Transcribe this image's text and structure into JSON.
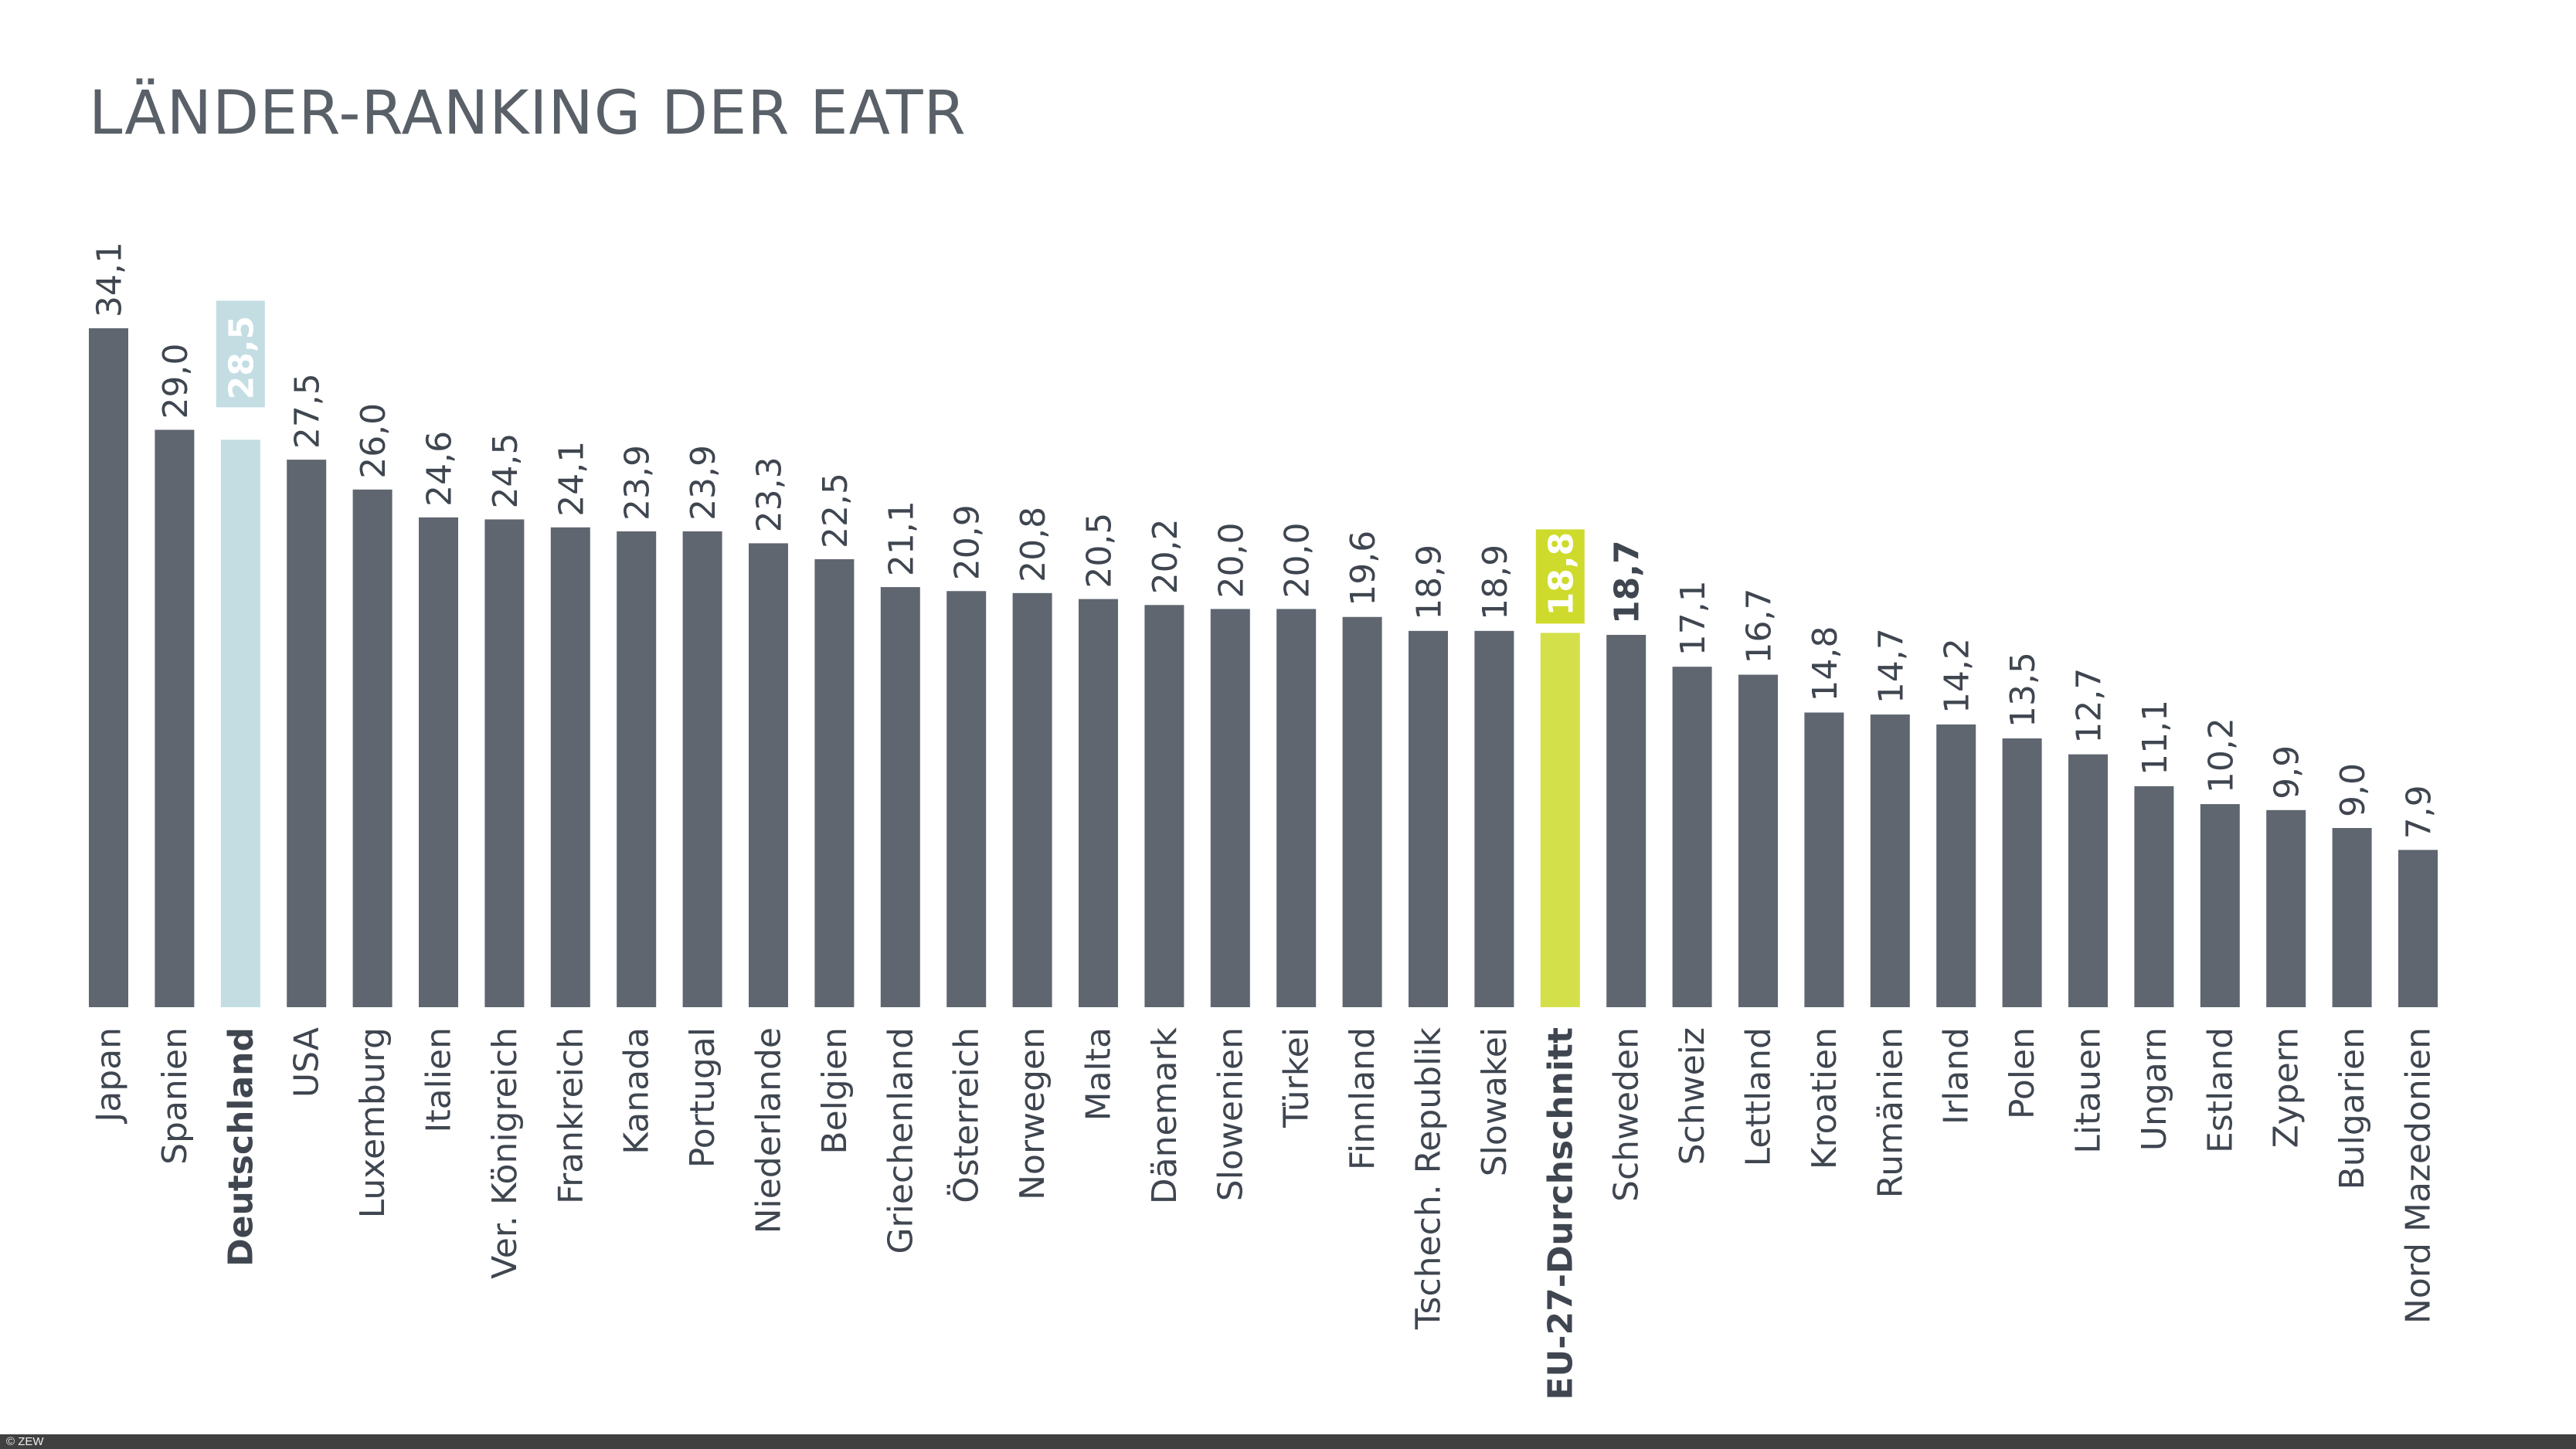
{
  "chart_data": {
    "type": "bar",
    "title": "LÄNDER-RANKING DER EATR",
    "categories": [
      "Japan",
      "Spanien",
      "Deutschland",
      "USA",
      "Luxemburg",
      "Italien",
      "Ver. Königreich",
      "Frankreich",
      "Kanada",
      "Portugal",
      "Niederlande",
      "Belgien",
      "Griechenland",
      "Österreich",
      "Norwegen",
      "Malta",
      "Dänemark",
      "Slowenien",
      "Türkei",
      "Finnland",
      "Tschech. Republik",
      "Slowakei",
      "EU-27-Durchschnitt",
      "Schweden",
      "Schweiz",
      "Lettland",
      "Kroatien",
      "Rumänien",
      "Irland",
      "Polen",
      "Litauen",
      "Ungarn",
      "Estland",
      "Zypern",
      "Bulgarien",
      "Nord Mazedonien"
    ],
    "values": [
      34.1,
      29.0,
      28.5,
      27.5,
      26.0,
      24.6,
      24.5,
      24.1,
      23.9,
      23.9,
      23.3,
      22.5,
      21.1,
      20.9,
      20.8,
      20.5,
      20.2,
      20.0,
      20.0,
      19.6,
      18.9,
      18.9,
      18.8,
      18.7,
      17.1,
      16.7,
      14.8,
      14.7,
      14.2,
      13.5,
      12.7,
      11.1,
      10.2,
      9.9,
      9.0,
      7.9
    ],
    "value_labels": [
      "34,1",
      "29,0",
      "28,5",
      "27,5",
      "26,0",
      "24,6",
      "24,5",
      "24,1",
      "23,9",
      "23,9",
      "23,3",
      "22,5",
      "21,1",
      "20,9",
      "20,8",
      "20,5",
      "20,2",
      "20,0",
      "20,0",
      "19,6",
      "18,9",
      "18,9",
      "18,8",
      "18,7",
      "17,1",
      "16,7",
      "14,8",
      "14,7",
      "14,2",
      "13,5",
      "12,7",
      "11,1",
      "10,2",
      "9,9",
      "9,0",
      "7,9"
    ],
    "highlights": {
      "Deutschland": "#c3dde3",
      "EU-27-Durchschnitt": "#d4e04a"
    },
    "bold_labels": [
      "Deutschland",
      "EU-27-Durchschnitt",
      "Schweden"
    ],
    "colors": {
      "bar": "#5f6670",
      "text": "#3f4650",
      "de_label_bg": "#c3dde3",
      "eu_label_bg": "#cedb2c"
    },
    "ylim": [
      0,
      34.1
    ],
    "grid": false,
    "xlabel": "",
    "ylabel": ""
  },
  "footer": {
    "copyright": "© ZEW"
  }
}
